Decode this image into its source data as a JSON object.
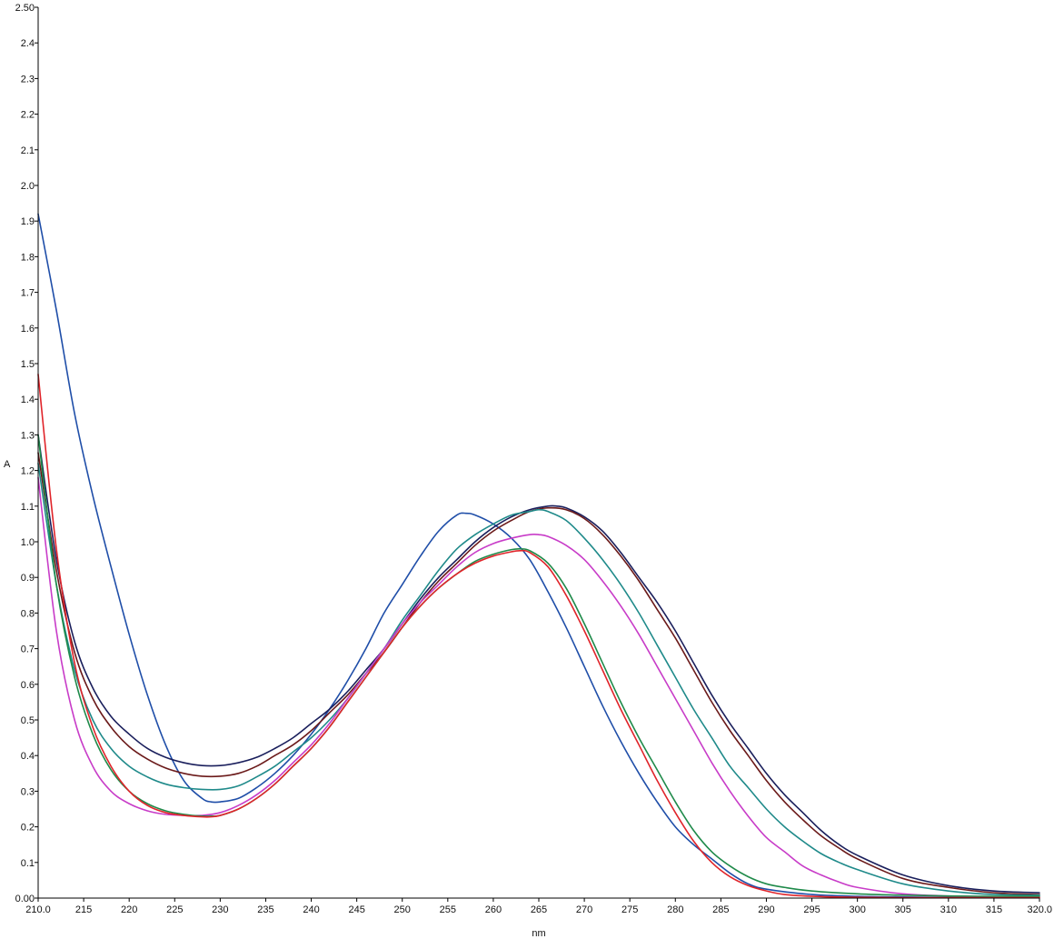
{
  "chart_data": {
    "type": "line",
    "title": "",
    "xlabel": "nm",
    "ylabel": "A",
    "xlim": [
      210,
      320
    ],
    "ylim": [
      0,
      2.5
    ],
    "grid": false,
    "x_ticks": [
      {
        "value": 210,
        "label": "210.0"
      },
      {
        "value": 215,
        "label": "215"
      },
      {
        "value": 220,
        "label": "220"
      },
      {
        "value": 225,
        "label": "225"
      },
      {
        "value": 230,
        "label": "230"
      },
      {
        "value": 235,
        "label": "235"
      },
      {
        "value": 240,
        "label": "240"
      },
      {
        "value": 245,
        "label": "245"
      },
      {
        "value": 250,
        "label": "250"
      },
      {
        "value": 255,
        "label": "255"
      },
      {
        "value": 260,
        "label": "260"
      },
      {
        "value": 265,
        "label": "265"
      },
      {
        "value": 270,
        "label": "270"
      },
      {
        "value": 275,
        "label": "275"
      },
      {
        "value": 280,
        "label": "280"
      },
      {
        "value": 285,
        "label": "285"
      },
      {
        "value": 290,
        "label": "290"
      },
      {
        "value": 295,
        "label": "295"
      },
      {
        "value": 300,
        "label": "300"
      },
      {
        "value": 305,
        "label": "305"
      },
      {
        "value": 310,
        "label": "310"
      },
      {
        "value": 315,
        "label": "315"
      },
      {
        "value": 320,
        "label": "320.0"
      }
    ],
    "y_ticks": [
      {
        "value": 0.0,
        "label": "0.00"
      },
      {
        "value": 0.1,
        "label": "0.1"
      },
      {
        "value": 0.2,
        "label": "0.2"
      },
      {
        "value": 0.3,
        "label": "0.3"
      },
      {
        "value": 0.4,
        "label": "0.4"
      },
      {
        "value": 0.5,
        "label": "0.5"
      },
      {
        "value": 0.6,
        "label": "0.6"
      },
      {
        "value": 0.7,
        "label": "0.7"
      },
      {
        "value": 0.8,
        "label": "0.8"
      },
      {
        "value": 0.9,
        "label": "0.9"
      },
      {
        "value": 1.0,
        "label": "1.0"
      },
      {
        "value": 1.1,
        "label": "1.1"
      },
      {
        "value": 1.2,
        "label": "1.2"
      },
      {
        "value": 1.3,
        "label": "1.3"
      },
      {
        "value": 1.4,
        "label": "1.4"
      },
      {
        "value": 1.5,
        "label": "1.5"
      },
      {
        "value": 1.6,
        "label": "1.6"
      },
      {
        "value": 1.7,
        "label": "1.7"
      },
      {
        "value": 1.8,
        "label": "1.8"
      },
      {
        "value": 1.9,
        "label": "1.9"
      },
      {
        "value": 2.0,
        "label": "2.0"
      },
      {
        "value": 2.1,
        "label": "2.1"
      },
      {
        "value": 2.2,
        "label": "2.2"
      },
      {
        "value": 2.3,
        "label": "2.3"
      },
      {
        "value": 2.4,
        "label": "2.4"
      },
      {
        "value": 2.5,
        "label": "2.50"
      }
    ],
    "series": [
      {
        "color": "#1f4ea8",
        "x": [
          210,
          212,
          214,
          216,
          218,
          220,
          222,
          224,
          226,
          228,
          229,
          230,
          232,
          234,
          236,
          238,
          240,
          242,
          244,
          246,
          248,
          250,
          252,
          254,
          256,
          257,
          258,
          260,
          262,
          264,
          266,
          268,
          270,
          272,
          274,
          276,
          278,
          280,
          282,
          284,
          286,
          288,
          290,
          295,
          300,
          305,
          310,
          315,
          320
        ],
        "y": [
          1.92,
          1.65,
          1.36,
          1.13,
          0.93,
          0.74,
          0.57,
          0.43,
          0.33,
          0.28,
          0.27,
          0.27,
          0.28,
          0.31,
          0.35,
          0.4,
          0.46,
          0.53,
          0.61,
          0.7,
          0.8,
          0.88,
          0.96,
          1.03,
          1.075,
          1.08,
          1.075,
          1.05,
          1.01,
          0.95,
          0.86,
          0.76,
          0.65,
          0.54,
          0.44,
          0.35,
          0.27,
          0.2,
          0.15,
          0.11,
          0.07,
          0.04,
          0.025,
          0.01,
          0.005,
          0.003,
          0.002,
          0.002,
          0.002
        ]
      },
      {
        "color": "#1a1f5c",
        "x": [
          210,
          212,
          214,
          216,
          218,
          220,
          222,
          224,
          226,
          228,
          230,
          232,
          234,
          236,
          238,
          240,
          242,
          244,
          246,
          248,
          250,
          252,
          254,
          256,
          258,
          260,
          262,
          264,
          266,
          267,
          268,
          270,
          272,
          274,
          276,
          278,
          280,
          282,
          284,
          286,
          288,
          290,
          292,
          294,
          296,
          298,
          300,
          305,
          310,
          315,
          320
        ],
        "y": [
          1.3,
          0.95,
          0.72,
          0.59,
          0.51,
          0.46,
          0.42,
          0.395,
          0.38,
          0.372,
          0.372,
          0.38,
          0.395,
          0.42,
          0.45,
          0.49,
          0.53,
          0.58,
          0.64,
          0.7,
          0.77,
          0.84,
          0.9,
          0.95,
          1.0,
          1.04,
          1.07,
          1.09,
          1.1,
          1.1,
          1.095,
          1.07,
          1.03,
          0.97,
          0.9,
          0.83,
          0.75,
          0.66,
          0.57,
          0.49,
          0.42,
          0.35,
          0.29,
          0.24,
          0.19,
          0.15,
          0.12,
          0.065,
          0.035,
          0.02,
          0.015
        ]
      },
      {
        "color": "#6b1a1a",
        "x": [
          210,
          212,
          214,
          216,
          218,
          220,
          222,
          224,
          226,
          228,
          230,
          232,
          234,
          236,
          238,
          240,
          242,
          244,
          246,
          248,
          250,
          252,
          254,
          256,
          258,
          260,
          262,
          264,
          266,
          268,
          270,
          272,
          274,
          276,
          278,
          280,
          282,
          284,
          286,
          288,
          290,
          292,
          294,
          296,
          298,
          300,
          305,
          310,
          315,
          320
        ],
        "y": [
          1.25,
          0.92,
          0.69,
          0.56,
          0.48,
          0.425,
          0.39,
          0.365,
          0.35,
          0.342,
          0.342,
          0.35,
          0.37,
          0.4,
          0.43,
          0.47,
          0.52,
          0.57,
          0.63,
          0.69,
          0.76,
          0.83,
          0.89,
          0.94,
          0.99,
          1.03,
          1.06,
          1.085,
          1.095,
          1.09,
          1.065,
          1.02,
          0.96,
          0.89,
          0.81,
          0.73,
          0.64,
          0.55,
          0.47,
          0.4,
          0.33,
          0.27,
          0.22,
          0.175,
          0.14,
          0.11,
          0.055,
          0.03,
          0.015,
          0.01
        ]
      },
      {
        "color": "#1f8a8a",
        "x": [
          210,
          212,
          214,
          216,
          218,
          220,
          222,
          224,
          226,
          228,
          230,
          232,
          234,
          236,
          238,
          240,
          242,
          244,
          246,
          248,
          250,
          252,
          254,
          256,
          258,
          260,
          262,
          264,
          265,
          266,
          268,
          270,
          272,
          274,
          276,
          278,
          280,
          282,
          284,
          286,
          288,
          290,
          292,
          294,
          296,
          298,
          300,
          305,
          310,
          315,
          320
        ],
        "y": [
          1.22,
          0.88,
          0.64,
          0.5,
          0.42,
          0.37,
          0.34,
          0.32,
          0.31,
          0.305,
          0.305,
          0.315,
          0.34,
          0.37,
          0.41,
          0.45,
          0.5,
          0.56,
          0.63,
          0.7,
          0.78,
          0.85,
          0.92,
          0.98,
          1.02,
          1.05,
          1.075,
          1.085,
          1.09,
          1.085,
          1.06,
          1.01,
          0.95,
          0.88,
          0.8,
          0.71,
          0.62,
          0.53,
          0.45,
          0.37,
          0.31,
          0.25,
          0.2,
          0.16,
          0.125,
          0.1,
          0.08,
          0.04,
          0.02,
          0.01,
          0.008
        ]
      },
      {
        "color": "#c83cc8",
        "x": [
          210,
          212,
          214,
          216,
          218,
          220,
          222,
          224,
          226,
          228,
          230,
          232,
          234,
          236,
          238,
          240,
          242,
          244,
          246,
          248,
          250,
          252,
          254,
          256,
          258,
          260,
          262,
          264,
          265,
          266,
          268,
          270,
          272,
          274,
          276,
          278,
          280,
          282,
          284,
          286,
          288,
          290,
          292,
          294,
          296,
          298,
          300,
          305,
          310,
          315,
          320
        ],
        "y": [
          1.18,
          0.75,
          0.5,
          0.37,
          0.3,
          0.265,
          0.245,
          0.235,
          0.232,
          0.232,
          0.24,
          0.26,
          0.29,
          0.33,
          0.38,
          0.43,
          0.49,
          0.56,
          0.63,
          0.7,
          0.77,
          0.83,
          0.88,
          0.93,
          0.97,
          0.995,
          1.01,
          1.02,
          1.02,
          1.015,
          0.99,
          0.95,
          0.89,
          0.82,
          0.74,
          0.65,
          0.56,
          0.47,
          0.38,
          0.3,
          0.23,
          0.17,
          0.13,
          0.09,
          0.065,
          0.045,
          0.03,
          0.012,
          0.006,
          0.004,
          0.003
        ]
      },
      {
        "color": "#1f8a4a",
        "x": [
          210,
          212,
          214,
          216,
          218,
          220,
          222,
          224,
          226,
          228,
          229,
          230,
          232,
          234,
          236,
          238,
          240,
          242,
          244,
          246,
          248,
          250,
          252,
          254,
          256,
          258,
          260,
          262,
          263,
          264,
          266,
          268,
          270,
          272,
          274,
          276,
          278,
          280,
          282,
          284,
          286,
          288,
          290,
          292,
          295,
          300,
          305,
          310,
          315,
          320
        ],
        "y": [
          1.3,
          0.88,
          0.62,
          0.46,
          0.36,
          0.3,
          0.265,
          0.245,
          0.235,
          0.23,
          0.23,
          0.232,
          0.25,
          0.28,
          0.32,
          0.37,
          0.42,
          0.48,
          0.55,
          0.62,
          0.69,
          0.76,
          0.82,
          0.87,
          0.91,
          0.945,
          0.965,
          0.978,
          0.98,
          0.975,
          0.94,
          0.87,
          0.77,
          0.66,
          0.55,
          0.45,
          0.36,
          0.27,
          0.19,
          0.13,
          0.09,
          0.06,
          0.04,
          0.03,
          0.02,
          0.012,
          0.008,
          0.006,
          0.005,
          0.005
        ]
      },
      {
        "color": "#e0242a",
        "x": [
          210,
          212,
          214,
          216,
          218,
          220,
          222,
          224,
          226,
          228,
          229,
          230,
          232,
          234,
          236,
          238,
          240,
          242,
          244,
          246,
          248,
          250,
          252,
          254,
          256,
          258,
          260,
          262,
          263,
          264,
          266,
          268,
          270,
          272,
          274,
          276,
          278,
          280,
          282,
          284,
          286,
          288,
          290,
          292,
          295,
          300,
          305,
          310,
          315,
          320
        ],
        "y": [
          1.47,
          0.98,
          0.66,
          0.48,
          0.37,
          0.3,
          0.26,
          0.24,
          0.232,
          0.228,
          0.228,
          0.232,
          0.25,
          0.28,
          0.32,
          0.37,
          0.42,
          0.48,
          0.55,
          0.62,
          0.69,
          0.76,
          0.82,
          0.87,
          0.91,
          0.94,
          0.96,
          0.972,
          0.975,
          0.97,
          0.93,
          0.85,
          0.75,
          0.64,
          0.53,
          0.43,
          0.33,
          0.24,
          0.16,
          0.1,
          0.06,
          0.035,
          0.02,
          0.01,
          0.005,
          0.002,
          0.001,
          0.001,
          0.001,
          0.001
        ]
      }
    ]
  }
}
